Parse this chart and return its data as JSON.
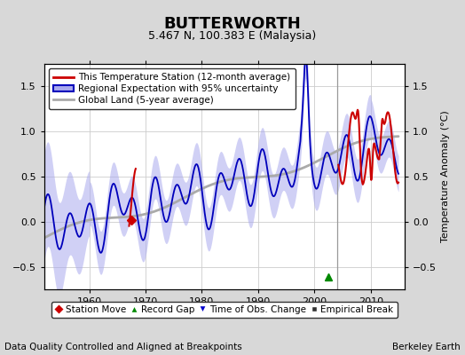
{
  "title": "BUTTERWORTH",
  "subtitle": "5.467 N, 100.383 E (Malaysia)",
  "ylabel": "Temperature Anomaly (°C)",
  "xlabel_left": "Data Quality Controlled and Aligned at Breakpoints",
  "xlabel_right": "Berkeley Earth",
  "xlim": [
    1952,
    2016
  ],
  "ylim": [
    -0.75,
    1.75
  ],
  "yticks": [
    -0.5,
    0.0,
    0.5,
    1.0,
    1.5
  ],
  "xticks": [
    1960,
    1970,
    1980,
    1990,
    2000,
    2010
  ],
  "bg_color": "#d8d8d8",
  "plot_bg_color": "#ffffff",
  "grid_color": "#cccccc",
  "station_line_color": "#cc0000",
  "regional_line_color": "#0000bb",
  "regional_fill_color": "#aaaaee",
  "global_line_color": "#aaaaaa",
  "vertical_line_color": "#999999",
  "vertical_line_x": 2004.0,
  "record_gap_x": 2002.5,
  "record_gap_y": -0.61,
  "station_move_x": 1967.5,
  "station_move_y": 0.02,
  "title_fontsize": 13,
  "subtitle_fontsize": 9,
  "legend_fontsize": 7.5,
  "tick_fontsize": 8,
  "footer_fontsize": 7.5
}
